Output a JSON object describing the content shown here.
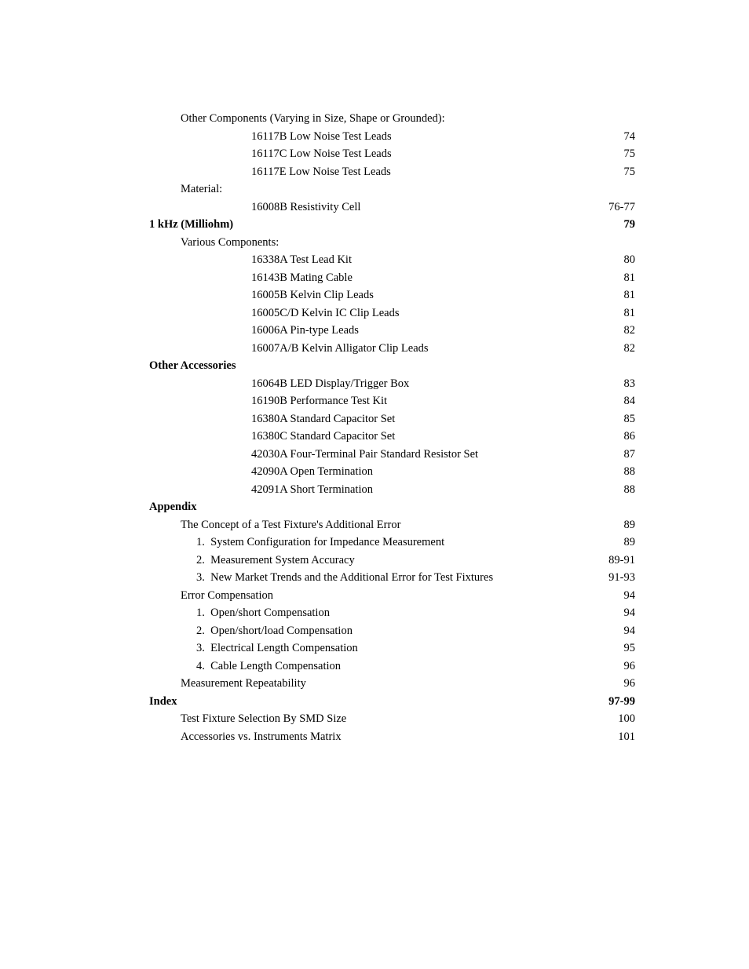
{
  "entries": [
    {
      "label": "Other Components (Varying in Size, Shape or Grounded):",
      "page": "",
      "indent": 1,
      "bold": false
    },
    {
      "label": "16117B Low Noise Test Leads",
      "page": "74",
      "indent": 3,
      "bold": false
    },
    {
      "label": "16117C Low Noise Test Leads",
      "page": "75",
      "indent": 3,
      "bold": false
    },
    {
      "label": "16117E Low Noise Test Leads",
      "page": "75",
      "indent": 3,
      "bold": false
    },
    {
      "label": "Material:",
      "page": "",
      "indent": 1,
      "bold": false
    },
    {
      "label": "16008B Resistivity Cell",
      "page": "76-77",
      "indent": 3,
      "bold": false
    },
    {
      "label": "1 kHz (Milliohm)",
      "page": "79",
      "indent": 0,
      "bold": true
    },
    {
      "label": "Various Components:",
      "page": "",
      "indent": 1,
      "bold": false
    },
    {
      "label": "16338A Test Lead Kit",
      "page": "80",
      "indent": 3,
      "bold": false
    },
    {
      "label": "16143B Mating Cable",
      "page": "81",
      "indent": 3,
      "bold": false
    },
    {
      "label": "16005B Kelvin Clip Leads",
      "page": "81",
      "indent": 3,
      "bold": false
    },
    {
      "label": "16005C/D Kelvin IC Clip Leads",
      "page": "81",
      "indent": 3,
      "bold": false
    },
    {
      "label": "16006A Pin-type Leads",
      "page": "82",
      "indent": 3,
      "bold": false
    },
    {
      "label": "16007A/B Kelvin Alligator Clip Leads",
      "page": "82",
      "indent": 3,
      "bold": false
    },
    {
      "label": "Other Accessories",
      "page": "",
      "indent": 0,
      "bold": true
    },
    {
      "label": "16064B LED Display/Trigger Box",
      "page": "83",
      "indent": 3,
      "bold": false
    },
    {
      "label": "16190B Performance Test Kit",
      "page": "84",
      "indent": 3,
      "bold": false
    },
    {
      "label": "16380A Standard Capacitor Set",
      "page": "85",
      "indent": 3,
      "bold": false
    },
    {
      "label": "16380C Standard Capacitor Set",
      "page": "86",
      "indent": 3,
      "bold": false
    },
    {
      "label": "42030A Four-Terminal Pair Standard Resistor Set",
      "page": "87",
      "indent": 3,
      "bold": false
    },
    {
      "label": "42090A Open Termination",
      "page": "88",
      "indent": 3,
      "bold": false
    },
    {
      "label": "42091A Short Termination",
      "page": "88",
      "indent": 3,
      "bold": false
    },
    {
      "label": "Appendix",
      "page": "",
      "indent": 0,
      "bold": true
    },
    {
      "label": "The Concept of a Test Fixture's Additional Error",
      "page": "89",
      "indent": 1,
      "bold": false
    },
    {
      "label": "1.  System Configuration for Impedance Measurement",
      "page": "89",
      "indent": 2,
      "bold": false
    },
    {
      "label": "2.  Measurement System Accuracy",
      "page": "89-91",
      "indent": 2,
      "bold": false
    },
    {
      "label": "3.  New Market Trends and the Additional Error for Test Fixtures",
      "page": "91-93",
      "indent": 2,
      "bold": false
    },
    {
      "label": "Error Compensation",
      "page": "94",
      "indent": 1,
      "bold": false
    },
    {
      "label": "1.  Open/short Compensation",
      "page": "94",
      "indent": 2,
      "bold": false
    },
    {
      "label": "2.  Open/short/load Compensation",
      "page": "94",
      "indent": 2,
      "bold": false
    },
    {
      "label": "3.  Electrical Length Compensation",
      "page": "95",
      "indent": 2,
      "bold": false
    },
    {
      "label": "4.  Cable Length Compensation",
      "page": "96",
      "indent": 2,
      "bold": false
    },
    {
      "label": "Measurement Repeatability",
      "page": "96",
      "indent": 1,
      "bold": false
    },
    {
      "label": "Index",
      "page": "97-99",
      "indent": 0,
      "bold": true
    },
    {
      "label": "Test Fixture Selection By SMD Size",
      "page": "100",
      "indent": 1,
      "bold": false
    },
    {
      "label": "Accessories vs. Instruments Matrix",
      "page": "101",
      "indent": 1,
      "bold": false
    }
  ]
}
